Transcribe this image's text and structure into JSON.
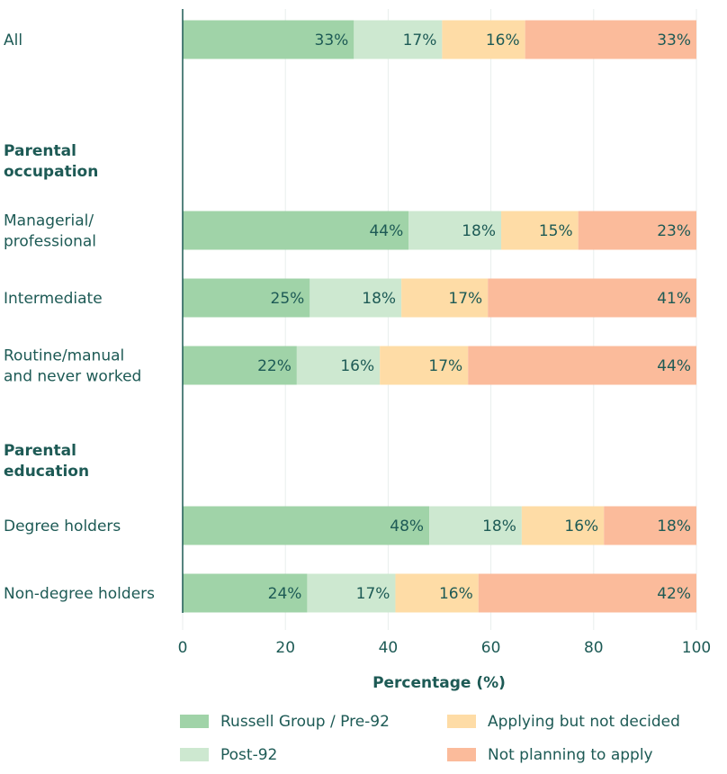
{
  "chart_data": {
    "type": "bar",
    "orientation": "horizontal",
    "stacked": true,
    "xlabel": "Percentage (%)",
    "xlim": [
      0,
      100
    ],
    "xticks": [
      "0",
      "20",
      "40",
      "60",
      "80",
      "100"
    ],
    "grid": true,
    "legend_position": "bottom",
    "groups": [
      {
        "label": "",
        "rows": [
          0
        ]
      },
      {
        "label": "Parental occupation",
        "rows": [
          1,
          2,
          3
        ]
      },
      {
        "label": "Parental education",
        "rows": [
          4,
          5
        ]
      }
    ],
    "categories": [
      [
        "All"
      ],
      [
        "Managerial/",
        "professional"
      ],
      [
        "Intermediate"
      ],
      [
        "Routine/manual",
        "and never worked"
      ],
      [
        "Degree holders"
      ],
      [
        "Non-degree holders"
      ]
    ],
    "series": [
      {
        "name": "Russell Group / Pre-92",
        "color": "#a0d3a8",
        "values": [
          33,
          44,
          25,
          22,
          48,
          24
        ]
      },
      {
        "name": "Post-92",
        "color": "#cde8d0",
        "values": [
          17,
          18,
          18,
          16,
          18,
          17
        ]
      },
      {
        "name": "Applying but not decided",
        "color": "#fedca6",
        "values": [
          16,
          15,
          17,
          17,
          16,
          16
        ]
      },
      {
        "name": "Not planning to apply",
        "color": "#fbbb9b",
        "values": [
          33,
          23,
          41,
          44,
          18,
          42
        ]
      }
    ],
    "value_suffix": "%"
  }
}
